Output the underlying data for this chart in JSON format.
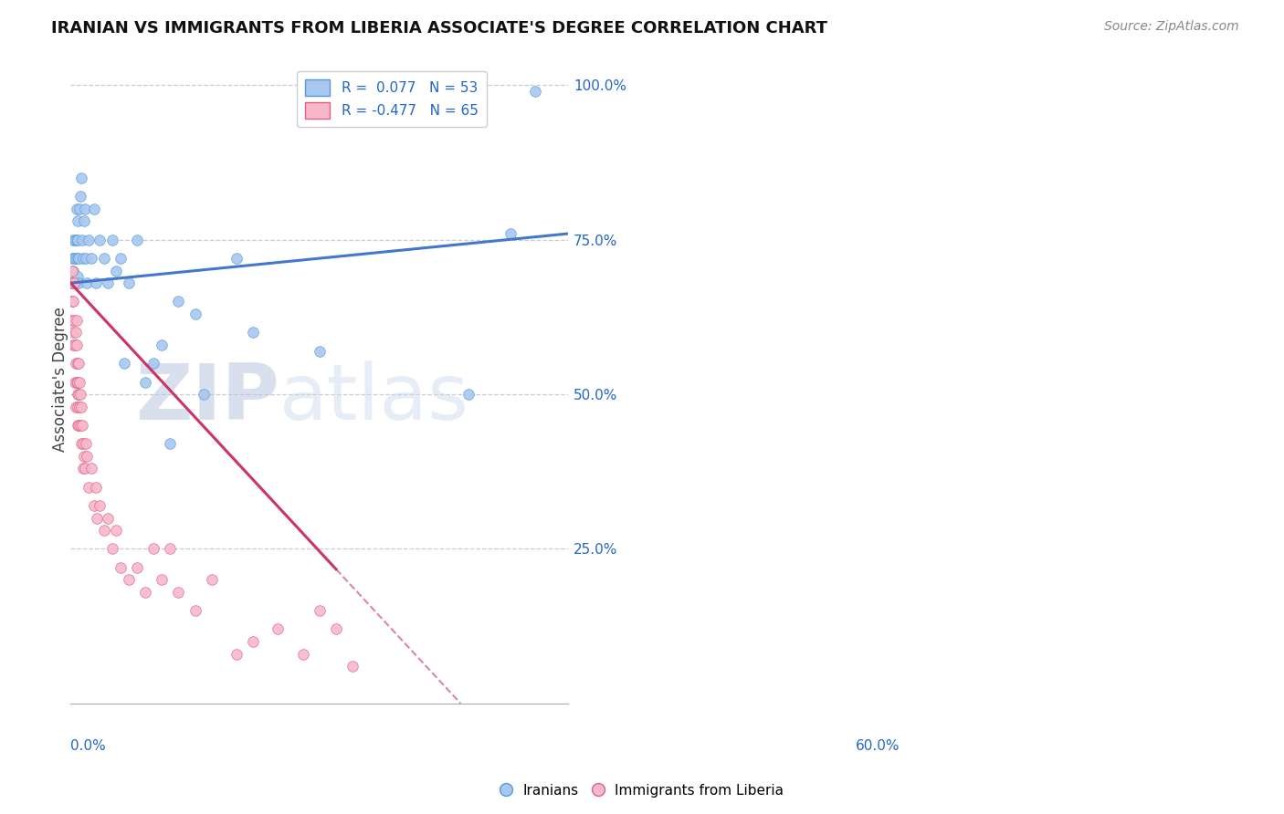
{
  "title": "IRANIAN VS IMMIGRANTS FROM LIBERIA ASSOCIATE'S DEGREE CORRELATION CHART",
  "source": "Source: ZipAtlas.com",
  "ylabel": "Associate's Degree",
  "iranians_color": "#a8c8f0",
  "iranians_edge": "#5599dd",
  "liberia_color": "#f8b8cc",
  "liberia_edge": "#e06080",
  "trend_blue_color": "#4477cc",
  "trend_pink_color": "#cc3366",
  "watermark_color": "#c8d8ee",
  "watermark_text": "ZIPAtlas",
  "blue_R": 0.077,
  "blue_N": 53,
  "pink_R": -0.477,
  "pink_N": 65,
  "legend_label_blue": "R =  0.077   N = 53",
  "legend_label_pink": "R = -0.477   N = 65",
  "xmin": 0.0,
  "xmax": 0.6,
  "ymin": 0.0,
  "ymax": 1.05,
  "blue_trend_x0": 0.0,
  "blue_trend_y0": 0.68,
  "blue_trend_x1": 0.6,
  "blue_trend_y1": 0.76,
  "pink_trend_x0": 0.0,
  "pink_trend_y0": 0.68,
  "pink_trend_x_solid_end": 0.32,
  "pink_trend_x_dash_end": 0.47,
  "blue_scatter_x": [
    0.001,
    0.002,
    0.002,
    0.003,
    0.003,
    0.004,
    0.005,
    0.005,
    0.006,
    0.006,
    0.007,
    0.007,
    0.008,
    0.008,
    0.009,
    0.009,
    0.01,
    0.01,
    0.011,
    0.012,
    0.013,
    0.014,
    0.015,
    0.016,
    0.017,
    0.018,
    0.02,
    0.022,
    0.025,
    0.028,
    0.03,
    0.035,
    0.04,
    0.045,
    0.05,
    0.055,
    0.06,
    0.065,
    0.07,
    0.08,
    0.09,
    0.1,
    0.11,
    0.12,
    0.13,
    0.15,
    0.16,
    0.2,
    0.22,
    0.3,
    0.48,
    0.53,
    0.56
  ],
  "blue_scatter_y": [
    0.68,
    0.72,
    0.65,
    0.75,
    0.7,
    0.72,
    0.68,
    0.75,
    0.72,
    0.68,
    0.75,
    0.8,
    0.72,
    0.78,
    0.69,
    0.75,
    0.72,
    0.68,
    0.8,
    0.82,
    0.85,
    0.75,
    0.72,
    0.78,
    0.8,
    0.72,
    0.68,
    0.75,
    0.72,
    0.8,
    0.68,
    0.75,
    0.72,
    0.68,
    0.75,
    0.7,
    0.72,
    0.55,
    0.68,
    0.75,
    0.52,
    0.55,
    0.58,
    0.42,
    0.65,
    0.63,
    0.5,
    0.72,
    0.6,
    0.57,
    0.5,
    0.76,
    0.99
  ],
  "pink_scatter_x": [
    0.001,
    0.001,
    0.002,
    0.002,
    0.003,
    0.003,
    0.003,
    0.004,
    0.004,
    0.005,
    0.005,
    0.006,
    0.006,
    0.006,
    0.007,
    0.007,
    0.007,
    0.008,
    0.008,
    0.008,
    0.009,
    0.009,
    0.01,
    0.01,
    0.01,
    0.011,
    0.011,
    0.012,
    0.012,
    0.013,
    0.013,
    0.014,
    0.015,
    0.015,
    0.016,
    0.017,
    0.018,
    0.02,
    0.022,
    0.025,
    0.028,
    0.03,
    0.032,
    0.035,
    0.04,
    0.045,
    0.05,
    0.055,
    0.06,
    0.07,
    0.08,
    0.09,
    0.1,
    0.11,
    0.12,
    0.13,
    0.15,
    0.17,
    0.2,
    0.22,
    0.25,
    0.28,
    0.3,
    0.32,
    0.34
  ],
  "pink_scatter_y": [
    0.68,
    0.62,
    0.65,
    0.7,
    0.6,
    0.65,
    0.58,
    0.62,
    0.68,
    0.52,
    0.58,
    0.55,
    0.6,
    0.48,
    0.52,
    0.58,
    0.62,
    0.5,
    0.55,
    0.45,
    0.52,
    0.48,
    0.5,
    0.55,
    0.45,
    0.48,
    0.52,
    0.45,
    0.5,
    0.48,
    0.42,
    0.45,
    0.42,
    0.38,
    0.4,
    0.38,
    0.42,
    0.4,
    0.35,
    0.38,
    0.32,
    0.35,
    0.3,
    0.32,
    0.28,
    0.3,
    0.25,
    0.28,
    0.22,
    0.2,
    0.22,
    0.18,
    0.25,
    0.2,
    0.25,
    0.18,
    0.15,
    0.2,
    0.08,
    0.1,
    0.12,
    0.08,
    0.15,
    0.12,
    0.06
  ]
}
